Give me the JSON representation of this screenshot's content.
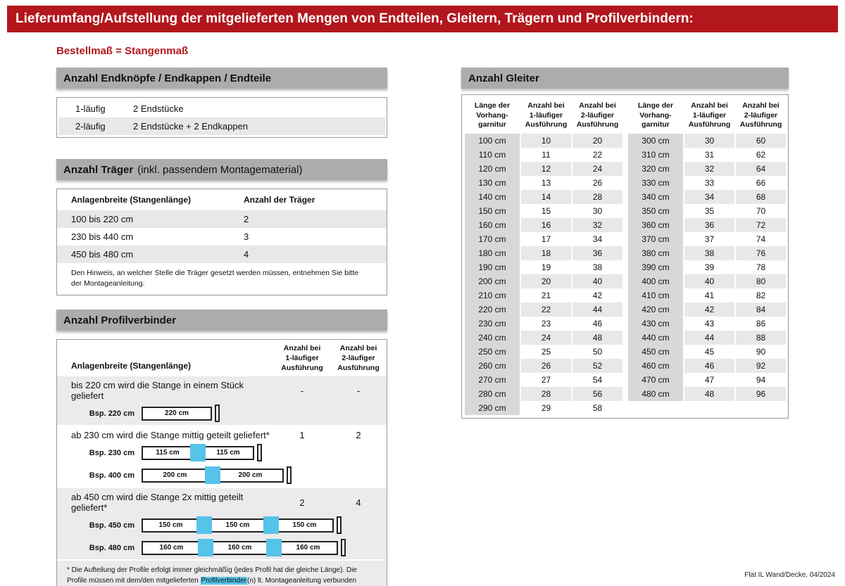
{
  "page": {
    "title": "Lieferumfang/Aufstellung der mitgelieferten Mengen von Endteilen, Gleitern, Trägern und Profilverbindern:",
    "subtitle": "Bestellmaß = Stangenmaß",
    "footer": "Flat IL Wand/Decke, 04/2024",
    "colors": {
      "red": "#b2171d",
      "header_gray": "#acacac",
      "row_gray": "#e8e8e8",
      "section_gray": "#ebebeb",
      "length_col_gray": "#d8d8d8",
      "connector_blue": "#56c3e8"
    }
  },
  "endteile": {
    "title": "Anzahl Endknöpfe / Endkappen / Endteile",
    "rows": [
      {
        "label": "1-läufig",
        "value": "2 Endstücke"
      },
      {
        "label": "2-läufig",
        "value": "2 Endstücke + 2 Endkappen"
      }
    ]
  },
  "traeger": {
    "title": "Anzahl Träger",
    "title_note": "(inkl. passendem Montagematerial)",
    "col_width": "Anlagenbreite (Stangenlänge)",
    "col_count": "Anzahl der Träger",
    "rows": [
      {
        "range": "100 bis 220 cm",
        "count": "2"
      },
      {
        "range": "230 bis 440 cm",
        "count": "3"
      },
      {
        "range": "450 bis 480 cm",
        "count": "4"
      }
    ],
    "note": "Den Hinweis, an welcher Stelle die Träger gesetzt werden müssen, entnehmen Sie bitte der Montageanleitung."
  },
  "profilverbinder": {
    "title": "Anzahl Profilverbinder",
    "col_width": "Anlagenbreite (Stangenlänge)",
    "col_a1": "Anzahl bei\n1-läufiger\nAusführung",
    "col_a2": "Anzahl bei\n2-läufiger\nAusführung",
    "sections": [
      {
        "heading": "bis 220 cm wird die Stange in einem Stück geliefert",
        "a1": "-",
        "a2": "-",
        "examples": [
          {
            "label": "Bsp. 220 cm",
            "segments": [
              "220 cm"
            ]
          }
        ]
      },
      {
        "heading": "ab 230 cm wird die Stange mittig geteilt geliefert*",
        "a1": "1",
        "a2": "2",
        "examples": [
          {
            "label": "Bsp. 230 cm",
            "segments": [
              "115 cm",
              "115 cm"
            ]
          },
          {
            "label": "Bsp. 400 cm",
            "segments": [
              "200 cm",
              "200 cm"
            ]
          }
        ]
      },
      {
        "heading": "ab 450 cm wird die Stange 2x mittig geteilt geliefert*",
        "a1": "2",
        "a2": "4",
        "examples": [
          {
            "label": "Bsp. 450 cm",
            "segments": [
              "150 cm",
              "150 cm",
              "150 cm"
            ]
          },
          {
            "label": "Bsp. 480 cm",
            "segments": [
              "160 cm",
              "160 cm",
              "160 cm"
            ]
          }
        ]
      }
    ],
    "footnote": {
      "part1": "* Die Aufteilung der Profile erfolgt immer gleichmäßig (jedes Profil hat die gleiche Länge). Die Profile müssen mit dem/den mitgelieferten ",
      "highlight": "Profilverbinder",
      "part2": "(n) lt. Montageanleitung verbunden werden."
    }
  },
  "gleiter": {
    "title": "Anzahl Gleiter",
    "col_len": "Länge der\nVorhang-\ngarnitur",
    "col_a1": "Anzahl bei\n1-läufiger\nAusführung",
    "col_a2": "Anzahl bei\n2-läufiger\nAusführung",
    "left_rows": [
      {
        "len": "100 cm",
        "a1": "10",
        "a2": "20"
      },
      {
        "len": "110 cm",
        "a1": "11",
        "a2": "22"
      },
      {
        "len": "120 cm",
        "a1": "12",
        "a2": "24"
      },
      {
        "len": "130 cm",
        "a1": "13",
        "a2": "26"
      },
      {
        "len": "140 cm",
        "a1": "14",
        "a2": "28"
      },
      {
        "len": "150 cm",
        "a1": "15",
        "a2": "30"
      },
      {
        "len": "160 cm",
        "a1": "16",
        "a2": "32"
      },
      {
        "len": "170 cm",
        "a1": "17",
        "a2": "34"
      },
      {
        "len": "180 cm",
        "a1": "18",
        "a2": "36"
      },
      {
        "len": "190 cm",
        "a1": "19",
        "a2": "38"
      },
      {
        "len": "200 cm",
        "a1": "20",
        "a2": "40"
      },
      {
        "len": "210 cm",
        "a1": "21",
        "a2": "42"
      },
      {
        "len": "220 cm",
        "a1": "22",
        "a2": "44"
      },
      {
        "len": "230 cm",
        "a1": "23",
        "a2": "46"
      },
      {
        "len": "240 cm",
        "a1": "24",
        "a2": "48"
      },
      {
        "len": "250 cm",
        "a1": "25",
        "a2": "50"
      },
      {
        "len": "260 cm",
        "a1": "26",
        "a2": "52"
      },
      {
        "len": "270 cm",
        "a1": "27",
        "a2": "54"
      },
      {
        "len": "280 cm",
        "a1": "28",
        "a2": "56"
      },
      {
        "len": "290 cm",
        "a1": "29",
        "a2": "58"
      }
    ],
    "right_rows": [
      {
        "len": "300 cm",
        "a1": "30",
        "a2": "60"
      },
      {
        "len": "310 cm",
        "a1": "31",
        "a2": "62"
      },
      {
        "len": "320 cm",
        "a1": "32",
        "a2": "64"
      },
      {
        "len": "330 cm",
        "a1": "33",
        "a2": "66"
      },
      {
        "len": "340 cm",
        "a1": "34",
        "a2": "68"
      },
      {
        "len": "350 cm",
        "a1": "35",
        "a2": "70"
      },
      {
        "len": "360 cm",
        "a1": "36",
        "a2": "72"
      },
      {
        "len": "370 cm",
        "a1": "37",
        "a2": "74"
      },
      {
        "len": "380 cm",
        "a1": "38",
        "a2": "76"
      },
      {
        "len": "390 cm",
        "a1": "39",
        "a2": "78"
      },
      {
        "len": "400 cm",
        "a1": "40",
        "a2": "80"
      },
      {
        "len": "410 cm",
        "a1": "41",
        "a2": "82"
      },
      {
        "len": "420 cm",
        "a1": "42",
        "a2": "84"
      },
      {
        "len": "430 cm",
        "a1": "43",
        "a2": "86"
      },
      {
        "len": "440 cm",
        "a1": "44",
        "a2": "88"
      },
      {
        "len": "450 cm",
        "a1": "45",
        "a2": "90"
      },
      {
        "len": "460 cm",
        "a1": "46",
        "a2": "92"
      },
      {
        "len": "470 cm",
        "a1": "47",
        "a2": "94"
      },
      {
        "len": "480 cm",
        "a1": "48",
        "a2": "96"
      }
    ]
  }
}
